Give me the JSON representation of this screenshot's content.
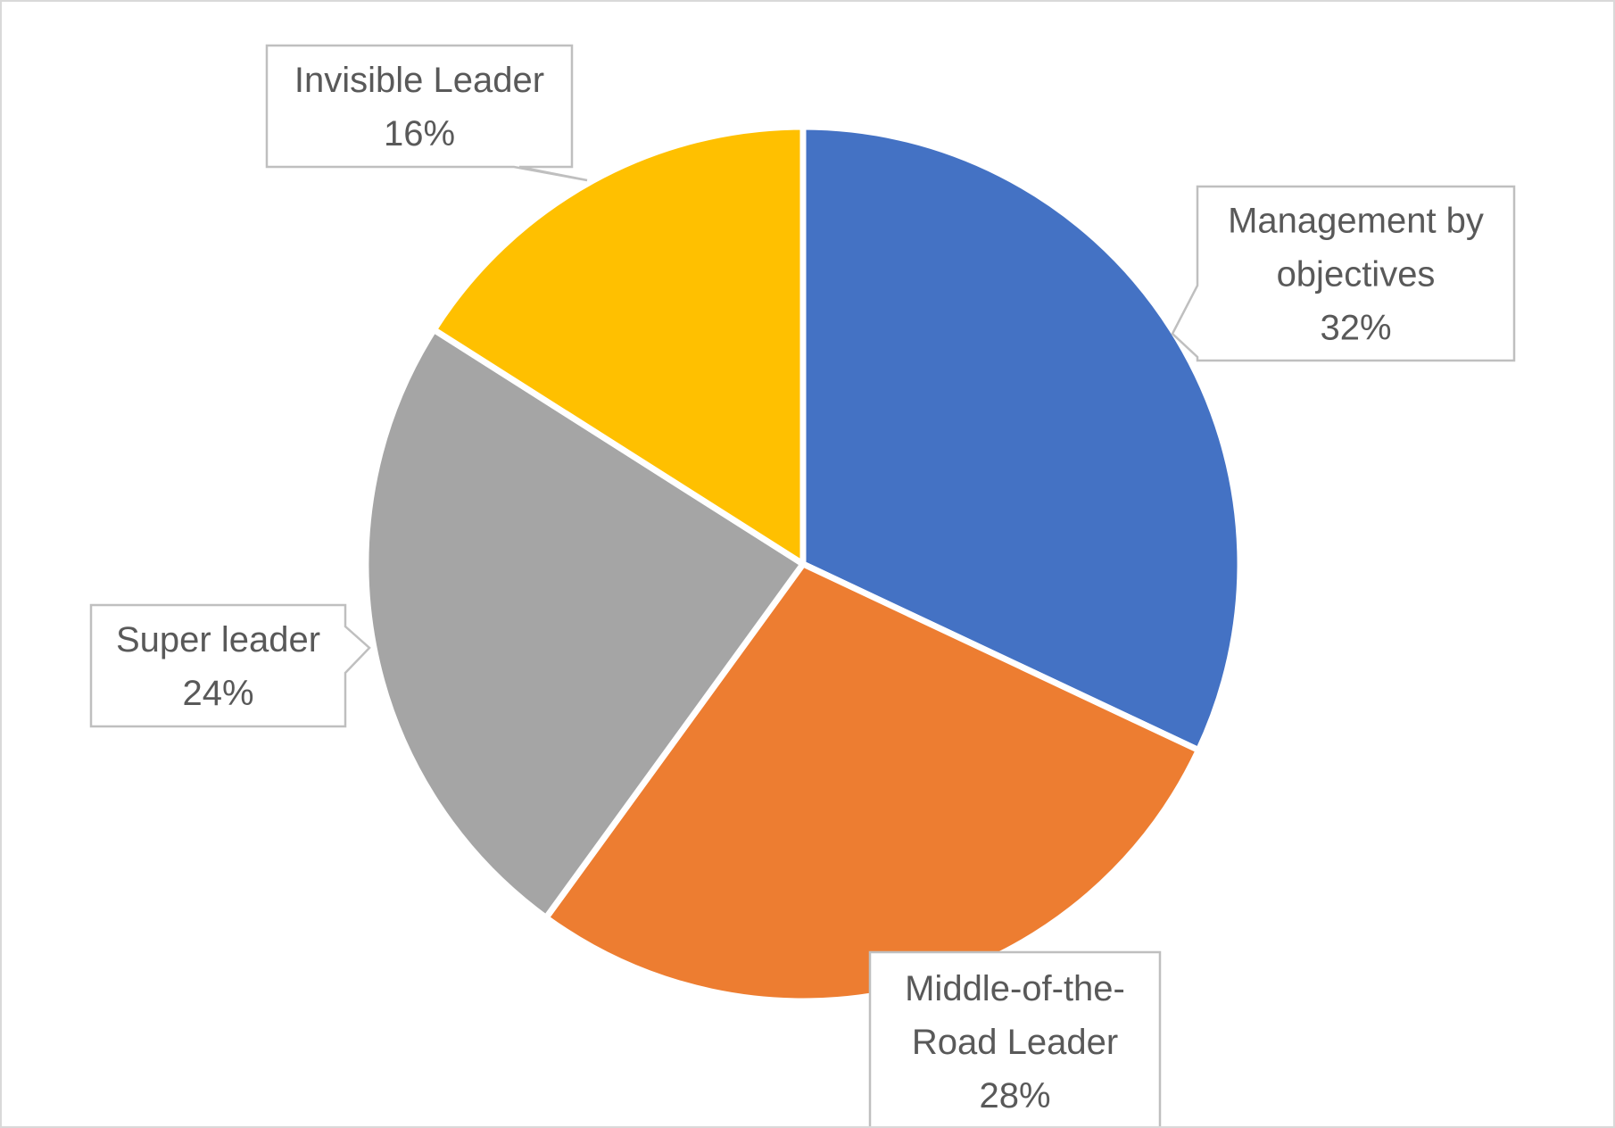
{
  "chart_data": {
    "type": "pie",
    "title": "",
    "slices": [
      {
        "label_lines": [
          "Management by",
          "objectives"
        ],
        "value_label": "32%",
        "value": 32,
        "color": "#4472C4"
      },
      {
        "label_lines": [
          "Middle-of-the-",
          "Road Leader"
        ],
        "value_label": "28%",
        "value": 28,
        "color": "#ED7D31"
      },
      {
        "label_lines": [
          "Super leader"
        ],
        "value_label": "24%",
        "value": 24,
        "color": "#A5A5A5"
      },
      {
        "label_lines": [
          "Invisible Leader"
        ],
        "value_label": "16%",
        "value": 16,
        "color": "#FFC000"
      }
    ],
    "start_angle": "12 o'clock",
    "direction": "clockwise",
    "legend": "none",
    "data_labels": "callouts"
  }
}
